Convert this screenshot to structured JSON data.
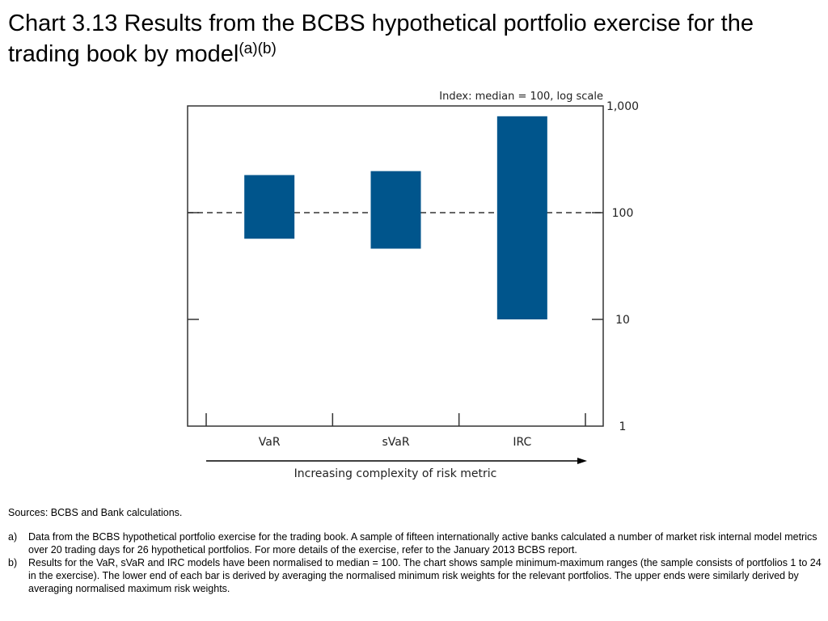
{
  "title": {
    "main": "Chart 3.13  Results from the BCBS hypothetical portfolio exercise for the trading book by model",
    "superscript": "(a)(b)"
  },
  "chart_data": {
    "type": "bar",
    "subtype": "floating-range",
    "scale_note": "Index:  median = 100, log scale",
    "y_scale": "log",
    "ylim": [
      1,
      1000
    ],
    "y_ticks": [
      {
        "value": 1000,
        "label": "1,000"
      },
      {
        "value": 100,
        "label": "100"
      },
      {
        "value": 10,
        "label": "10"
      },
      {
        "value": 1,
        "label": "1"
      }
    ],
    "reference_line": {
      "value": 100,
      "style": "dashed"
    },
    "categories": [
      "VaR",
      "sVaR",
      "IRC"
    ],
    "ranges": [
      {
        "category": "VaR",
        "min": 57,
        "max": 225
      },
      {
        "category": "sVaR",
        "min": 46,
        "max": 245
      },
      {
        "category": "IRC",
        "min": 10,
        "max": 800
      }
    ],
    "bar_color": "#00558c",
    "xlabel": "Increasing complexity of risk metric",
    "grid": false
  },
  "footer": {
    "sources": "Sources:  BCBS and Bank calculations.",
    "notes": [
      {
        "label": "a)",
        "text": "Data from the BCBS hypothetical portfolio exercise for the trading book.  A sample of fifteen internationally active banks calculated a number of market risk internal model metrics over 20 trading days for 26 hypothetical portfolios.  For more details of the exercise, refer to the January 2013 BCBS report."
      },
      {
        "label": "b)",
        "text": "Results for the VaR, sVaR and IRC models have been normalised to median = 100.  The chart shows sample minimum-maximum ranges (the sample consists of portfolios 1 to 24 in the exercise).  The lower end of each bar is derived by averaging the normalised minimum risk weights for the relevant portfolios.  The upper ends were similarly derived by averaging normalised maximum risk weights."
      }
    ]
  }
}
